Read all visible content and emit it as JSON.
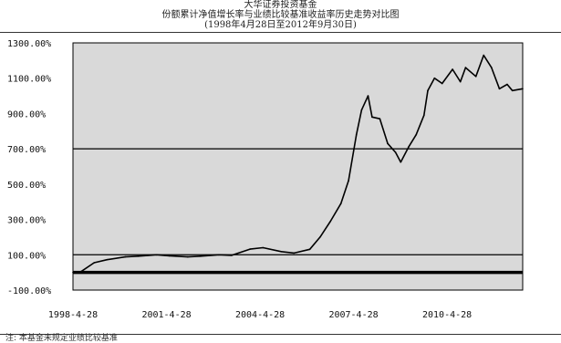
{
  "title": {
    "line1": "大华证券投资基金",
    "line2": "份额累计净值增长率与业绩比较基准收益率历史走势对比图",
    "line3": "(1998年4月28日至2012年9月30日)"
  },
  "note": "注: 本基金未规定业绩比较基准",
  "chart_data": {
    "type": "line",
    "title": "份额累计净值增长率与业绩比较基准收益率历史走势对比图",
    "xlabel": "",
    "ylabel": "",
    "y_tick_labels": [
      "1300.00%",
      "1100.00%",
      "900.00%",
      "700.00%",
      "500.00%",
      "300.00%",
      "100.00%",
      "-100.00%"
    ],
    "y_ticks": [
      1300,
      1100,
      900,
      700,
      500,
      300,
      100,
      -100
    ],
    "ylim": [
      -100,
      1300
    ],
    "x_tick_labels": [
      "1998-4-28",
      "2001-4-28",
      "2004-4-28",
      "2007-4-28",
      "2010-4-28"
    ],
    "x_ticks": [
      "1998-04-28",
      "2001-04-28",
      "2004-04-28",
      "2007-04-28",
      "2010-04-28"
    ],
    "xlim": [
      "1998-04-28",
      "2012-09-30"
    ],
    "reference_lines": [
      0,
      100,
      700
    ],
    "grid": false,
    "background": "#d9d9d9",
    "series": [
      {
        "color": "#000000",
        "x": [
          "1998-04-28",
          "1998-08-01",
          "1999-01-01",
          "1999-06-01",
          "2000-01-01",
          "2000-06-01",
          "2001-01-01",
          "2001-06-01",
          "2002-01-01",
          "2002-06-01",
          "2003-01-01",
          "2003-06-01",
          "2004-01-01",
          "2004-06-01",
          "2005-01-01",
          "2005-06-01",
          "2005-12-01",
          "2006-04-01",
          "2006-08-01",
          "2006-12-01",
          "2007-03-01",
          "2007-06-01",
          "2007-08-01",
          "2007-10-15",
          "2007-12-01",
          "2008-03-01",
          "2008-06-01",
          "2008-09-01",
          "2008-11-01",
          "2009-02-01",
          "2009-05-01",
          "2009-08-01",
          "2009-09-15",
          "2009-12-01",
          "2010-03-01",
          "2010-07-01",
          "2010-10-01",
          "2010-12-01",
          "2011-04-01",
          "2011-07-01",
          "2011-10-01",
          "2012-01-01",
          "2012-04-01",
          "2012-06-01",
          "2012-09-30"
        ],
        "y": [
          0,
          5,
          55,
          72,
          88,
          92,
          100,
          94,
          88,
          92,
          100,
          97,
          132,
          140,
          118,
          110,
          131,
          200,
          290,
          390,
          520,
          780,
          920,
          1000,
          880,
          870,
          730,
          680,
          625,
          710,
          780,
          890,
          1030,
          1100,
          1070,
          1150,
          1080,
          1160,
          1110,
          1230,
          1160,
          1040,
          1065,
          1030,
          1040
        ]
      }
    ]
  }
}
